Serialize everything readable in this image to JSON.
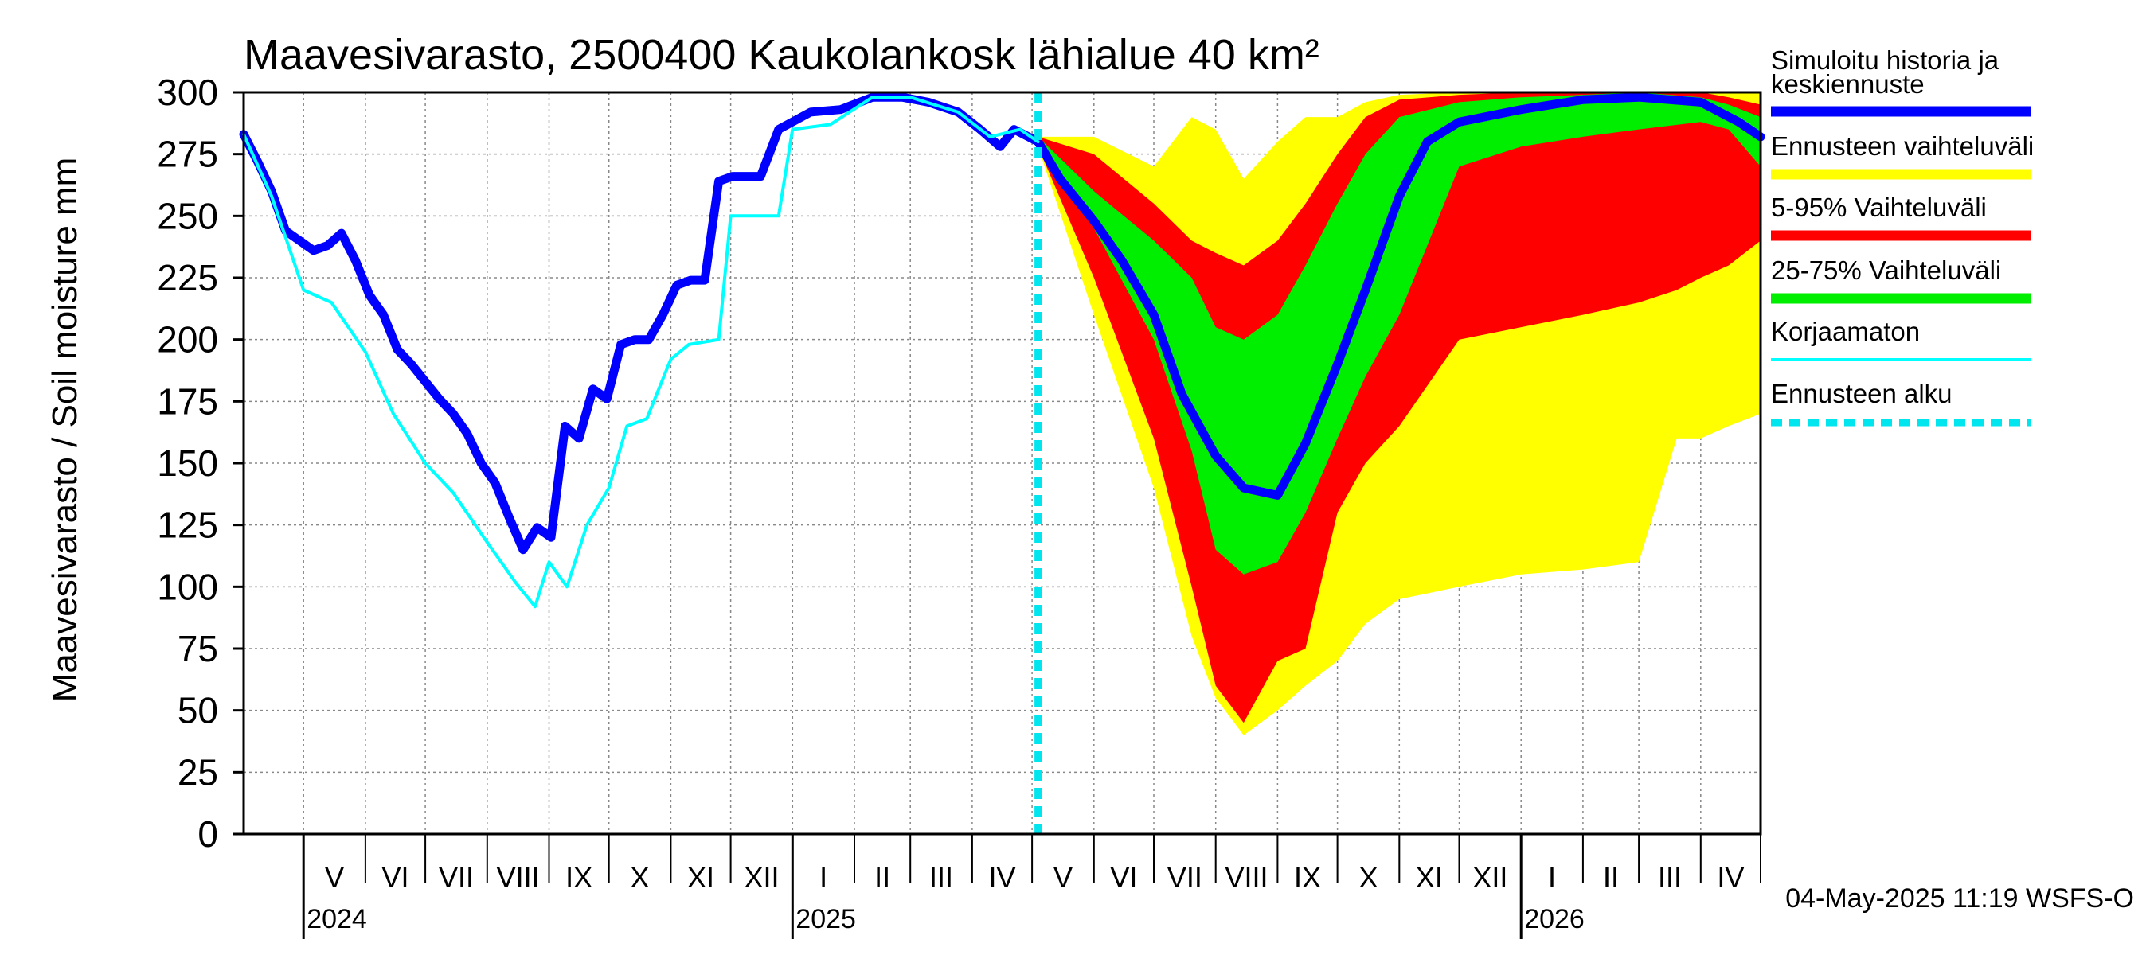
{
  "chart_data": {
    "type": "area",
    "title": "Maavesivarasto, 2500400 Kaukolankosk lähialue 40 km²",
    "ylabel": "Maavesivarasto / Soil moisture   mm",
    "ylim": [
      0,
      300
    ],
    "yticks": [
      "0",
      "25",
      "50",
      "75",
      "100",
      "125",
      "150",
      "175",
      "200",
      "225",
      "250",
      "275",
      "300"
    ],
    "x_range": [
      "2024-04-01",
      "2026-05-01"
    ],
    "months": [
      {
        "label": "V",
        "start": "2024-05-01"
      },
      {
        "label": "VI",
        "start": "2024-06-01"
      },
      {
        "label": "VII",
        "start": "2024-07-01"
      },
      {
        "label": "VIII",
        "start": "2024-08-01"
      },
      {
        "label": "IX",
        "start": "2024-09-01"
      },
      {
        "label": "X",
        "start": "2024-10-01"
      },
      {
        "label": "XI",
        "start": "2024-11-01"
      },
      {
        "label": "XII",
        "start": "2024-12-01"
      },
      {
        "label": "I",
        "start": "2025-01-01"
      },
      {
        "label": "II",
        "start": "2025-02-01"
      },
      {
        "label": "III",
        "start": "2025-03-01"
      },
      {
        "label": "IV",
        "start": "2025-04-01"
      },
      {
        "label": "V",
        "start": "2025-05-01"
      },
      {
        "label": "VI",
        "start": "2025-06-01"
      },
      {
        "label": "VII",
        "start": "2025-07-01"
      },
      {
        "label": "VIII",
        "start": "2025-08-01"
      },
      {
        "label": "IX",
        "start": "2025-09-01"
      },
      {
        "label": "X",
        "start": "2025-10-01"
      },
      {
        "label": "XI",
        "start": "2025-11-01"
      },
      {
        "label": "XII",
        "start": "2025-12-01"
      },
      {
        "label": "I",
        "start": "2026-01-01"
      },
      {
        "label": "II",
        "start": "2026-02-01"
      },
      {
        "label": "III",
        "start": "2026-03-01"
      },
      {
        "label": "IV",
        "start": "2026-04-01"
      }
    ],
    "years": [
      {
        "label": "2024",
        "date": "2024-05-01"
      },
      {
        "label": "2025",
        "date": "2025-01-01"
      },
      {
        "label": "2026",
        "date": "2026-01-01"
      }
    ],
    "forecast_start": "2025-05-04",
    "legend": [
      {
        "label": "Simuloitu historia ja keskiennuste",
        "lines": [
          "Simuloitu historia ja",
          "keskiennuste"
        ],
        "color": "#0000ff",
        "style": "thick"
      },
      {
        "label": "Ennusteen vaihteluväli",
        "lines": [
          "Ennusteen vaihteluväli"
        ],
        "color": "#ffff00",
        "style": "thick"
      },
      {
        "label": "5-95% Vaihteluväli",
        "lines": [
          "5-95% Vaihteluväli"
        ],
        "color": "#ff0000",
        "style": "thick"
      },
      {
        "label": "25-75% Vaihteluväli",
        "lines": [
          "25-75% Vaihteluväli"
        ],
        "color": "#00ee00",
        "style": "thick"
      },
      {
        "label": "Korjaamaton",
        "lines": [
          "Korjaamaton"
        ],
        "color": "#00ffff",
        "style": "thin"
      },
      {
        "label": "Ennusteen alku",
        "lines": [
          "Ennusteen alku"
        ],
        "color": "#00e5ee",
        "style": "dashed"
      }
    ],
    "series": [
      {
        "name": "Simuloitu historia ja keskiennuste",
        "color": "#0000ff",
        "points": [
          [
            "2024-04-01",
            283
          ],
          [
            "2024-04-08",
            272
          ],
          [
            "2024-04-15",
            260
          ],
          [
            "2024-04-22",
            244
          ],
          [
            "2024-04-29",
            240
          ],
          [
            "2024-05-06",
            236
          ],
          [
            "2024-05-13",
            238
          ],
          [
            "2024-05-20",
            243
          ],
          [
            "2024-05-27",
            232
          ],
          [
            "2024-06-03",
            218
          ],
          [
            "2024-06-10",
            210
          ],
          [
            "2024-06-17",
            196
          ],
          [
            "2024-06-24",
            190
          ],
          [
            "2024-07-01",
            183
          ],
          [
            "2024-07-08",
            176
          ],
          [
            "2024-07-15",
            170
          ],
          [
            "2024-07-22",
            162
          ],
          [
            "2024-07-29",
            150
          ],
          [
            "2024-08-05",
            142
          ],
          [
            "2024-08-12",
            128
          ],
          [
            "2024-08-19",
            115
          ],
          [
            "2024-08-26",
            124
          ],
          [
            "2024-09-02",
            120
          ],
          [
            "2024-09-09",
            165
          ],
          [
            "2024-09-16",
            160
          ],
          [
            "2024-09-23",
            180
          ],
          [
            "2024-09-30",
            176
          ],
          [
            "2024-10-07",
            198
          ],
          [
            "2024-10-14",
            200
          ],
          [
            "2024-10-21",
            200
          ],
          [
            "2024-10-28",
            210
          ],
          [
            "2024-11-04",
            222
          ],
          [
            "2024-11-11",
            224
          ],
          [
            "2024-11-18",
            224
          ],
          [
            "2024-11-25",
            264
          ],
          [
            "2024-12-02",
            266
          ],
          [
            "2024-12-16",
            266
          ],
          [
            "2024-12-25",
            285
          ],
          [
            "2025-01-10",
            292
          ],
          [
            "2025-01-25",
            293
          ],
          [
            "2025-02-10",
            298
          ],
          [
            "2025-02-25",
            298
          ],
          [
            "2025-03-10",
            296
          ],
          [
            "2025-03-25",
            292
          ],
          [
            "2025-04-05",
            285
          ],
          [
            "2025-04-15",
            278
          ],
          [
            "2025-04-22",
            285
          ],
          [
            "2025-05-04",
            280
          ],
          [
            "2025-05-15",
            265
          ],
          [
            "2025-06-01",
            248
          ],
          [
            "2025-06-15",
            232
          ],
          [
            "2025-07-01",
            210
          ],
          [
            "2025-07-15",
            178
          ],
          [
            "2025-08-01",
            153
          ],
          [
            "2025-08-15",
            140
          ],
          [
            "2025-09-01",
            137
          ],
          [
            "2025-09-15",
            158
          ],
          [
            "2025-10-01",
            190
          ],
          [
            "2025-10-15",
            220
          ],
          [
            "2025-11-01",
            258
          ],
          [
            "2025-11-15",
            280
          ],
          [
            "2025-12-01",
            288
          ],
          [
            "2026-01-01",
            293
          ],
          [
            "2026-02-01",
            297
          ],
          [
            "2026-03-01",
            298
          ],
          [
            "2026-04-01",
            296
          ],
          [
            "2026-04-20",
            288
          ],
          [
            "2026-05-01",
            282
          ]
        ]
      },
      {
        "name": "Korjaamaton",
        "color": "#00ffff",
        "points": [
          [
            "2024-04-01",
            283
          ],
          [
            "2024-04-15",
            258
          ],
          [
            "2024-05-01",
            220
          ],
          [
            "2024-05-15",
            215
          ],
          [
            "2024-06-01",
            195
          ],
          [
            "2024-06-15",
            170
          ],
          [
            "2024-07-01",
            150
          ],
          [
            "2024-07-15",
            138
          ],
          [
            "2024-08-01",
            118
          ],
          [
            "2024-08-15",
            102
          ],
          [
            "2024-08-25",
            92
          ],
          [
            "2024-09-01",
            110
          ],
          [
            "2024-09-10",
            100
          ],
          [
            "2024-09-20",
            125
          ],
          [
            "2024-10-01",
            140
          ],
          [
            "2024-10-10",
            165
          ],
          [
            "2024-10-20",
            168
          ],
          [
            "2024-11-01",
            192
          ],
          [
            "2024-11-10",
            198
          ],
          [
            "2024-11-25",
            200
          ],
          [
            "2024-12-01",
            250
          ],
          [
            "2024-12-25",
            250
          ],
          [
            "2025-01-01",
            285
          ],
          [
            "2025-01-20",
            287
          ],
          [
            "2025-02-10",
            298
          ],
          [
            "2025-03-01",
            298
          ],
          [
            "2025-03-25",
            292
          ],
          [
            "2025-04-10",
            282
          ],
          [
            "2025-04-25",
            285
          ],
          [
            "2025-05-04",
            280
          ]
        ]
      }
    ],
    "bands": [
      {
        "name": "Ennusteen vaihteluväli",
        "color": "#ffff00",
        "x": [
          "2025-05-04",
          "2025-06-01",
          "2025-07-01",
          "2025-07-20",
          "2025-08-01",
          "2025-08-15",
          "2025-09-01",
          "2025-09-15",
          "2025-10-01",
          "2025-10-15",
          "2025-11-01",
          "2025-12-01",
          "2026-01-01",
          "2026-02-01",
          "2026-03-01",
          "2026-03-20",
          "2026-04-01",
          "2026-04-15",
          "2026-05-01"
        ],
        "low": [
          278,
          210,
          140,
          80,
          55,
          40,
          50,
          60,
          70,
          85,
          95,
          100,
          105,
          107,
          110,
          160,
          160,
          165,
          170
        ],
        "high": [
          282,
          282,
          270,
          290,
          285,
          265,
          280,
          290,
          290,
          296,
          299,
          300,
          300,
          300,
          300,
          300,
          300,
          300,
          300
        ]
      },
      {
        "name": "5-95% Vaihteluväli",
        "color": "#ff0000",
        "x": [
          "2025-05-04",
          "2025-06-01",
          "2025-07-01",
          "2025-07-20",
          "2025-08-01",
          "2025-08-15",
          "2025-09-01",
          "2025-09-15",
          "2025-10-01",
          "2025-10-15",
          "2025-11-01",
          "2025-12-01",
          "2026-01-01",
          "2026-02-01",
          "2026-03-01",
          "2026-03-20",
          "2026-04-01",
          "2026-04-15",
          "2026-05-01"
        ],
        "low": [
          278,
          225,
          160,
          100,
          60,
          45,
          70,
          75,
          130,
          150,
          165,
          200,
          205,
          210,
          215,
          220,
          225,
          230,
          240
        ],
        "high": [
          282,
          275,
          255,
          240,
          235,
          230,
          240,
          255,
          275,
          290,
          297,
          299,
          300,
          300,
          300,
          300,
          300,
          298,
          295
        ]
      },
      {
        "name": "25-75% Vaihteluväli",
        "color": "#00ee00",
        "x": [
          "2025-05-04",
          "2025-06-01",
          "2025-07-01",
          "2025-07-20",
          "2025-08-01",
          "2025-08-15",
          "2025-09-01",
          "2025-09-15",
          "2025-10-01",
          "2025-10-15",
          "2025-11-01",
          "2025-12-01",
          "2026-01-01",
          "2026-02-01",
          "2026-03-01",
          "2026-04-01",
          "2026-04-15",
          "2026-05-01"
        ],
        "low": [
          278,
          245,
          200,
          155,
          115,
          105,
          110,
          130,
          160,
          185,
          210,
          270,
          278,
          282,
          285,
          288,
          285,
          270
        ],
        "high": [
          282,
          260,
          240,
          225,
          205,
          200,
          210,
          230,
          255,
          275,
          290,
          296,
          298,
          299,
          300,
          298,
          295,
          290
        ]
      }
    ]
  },
  "footer": "04-May-2025 11:19 WSFS-O"
}
